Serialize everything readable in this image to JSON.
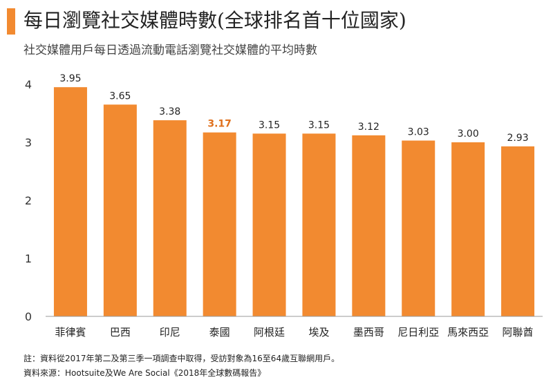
{
  "header": {
    "title": "每日瀏覽社交媒體時數(全球排名首十位國家)",
    "subtitle": "社交媒體用戶每日透過流動電話瀏覽社交媒體的平均時數"
  },
  "footer": {
    "note": "註：資料從2017年第二及第三季一項調查中取得，受訪對象為16至64歲互聯網用戶。",
    "source": "資料來源：Hootsuite及We Are Social《2018年全球數碼報告》"
  },
  "colors": {
    "bar": "#f28a30",
    "highlight_label": "#e0701c",
    "axis": "#999999"
  },
  "chart_data": {
    "type": "bar",
    "title": "每日瀏覽社交媒體時數(全球排名首十位國家)",
    "subtitle": "社交媒體用戶每日透過流動電話瀏覽社交媒體的平均時數",
    "xlabel": "",
    "ylabel": "",
    "ylim": [
      0,
      4
    ],
    "yticks": [
      0,
      1,
      2,
      3,
      4
    ],
    "categories": [
      "菲律賓",
      "巴西",
      "印尼",
      "泰國",
      "阿根廷",
      "埃及",
      "墨西哥",
      "尼日利亞",
      "馬來西亞",
      "阿聯酋"
    ],
    "values": [
      3.95,
      3.65,
      3.38,
      3.17,
      3.15,
      3.15,
      3.12,
      3.03,
      3.0,
      2.93
    ],
    "value_labels": [
      "3.95",
      "3.65",
      "3.38",
      "3.17",
      "3.15",
      "3.15",
      "3.12",
      "3.03",
      "3.00",
      "2.93"
    ],
    "highlight_index": 3
  }
}
